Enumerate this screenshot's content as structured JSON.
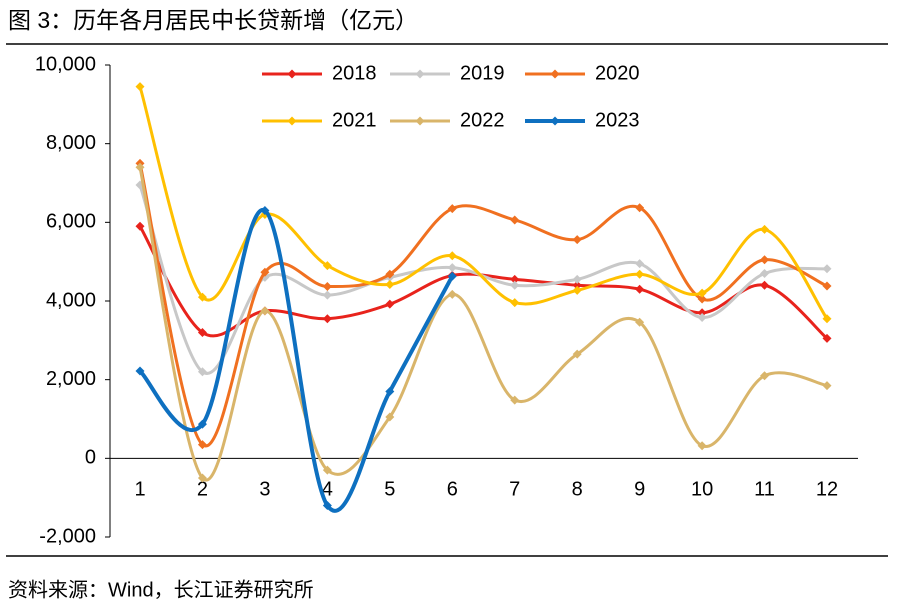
{
  "chart_data": {
    "type": "line",
    "title": "图 3：历年各月居民中长贷新增（亿元）",
    "source": "资料来源：Wind，长江证券研究所",
    "categories": [
      "1",
      "2",
      "3",
      "4",
      "5",
      "6",
      "7",
      "8",
      "9",
      "10",
      "11",
      "12"
    ],
    "series": [
      {
        "name": "2018",
        "color": "#e8231c",
        "values": [
          5900,
          3200,
          3750,
          3550,
          3920,
          4650,
          4550,
          4400,
          4300,
          3700,
          4400,
          3050
        ]
      },
      {
        "name": "2019",
        "color": "#c8c8c8",
        "values": [
          6950,
          2200,
          4600,
          4150,
          4600,
          4850,
          4400,
          4550,
          4950,
          3580,
          4700,
          4820
        ]
      },
      {
        "name": "2020",
        "color": "#f07020",
        "values": [
          7500,
          350,
          4730,
          4370,
          4680,
          6350,
          6060,
          5560,
          6370,
          4050,
          5050,
          4380
        ]
      },
      {
        "name": "2021",
        "color": "#ffc000",
        "values": [
          9450,
          4100,
          6200,
          4900,
          4420,
          5150,
          3960,
          4270,
          4680,
          4200,
          5820,
          3550
        ]
      },
      {
        "name": "2022",
        "color": "#d9b56a",
        "values": [
          7400,
          -500,
          3750,
          -300,
          1050,
          4170,
          1480,
          2650,
          3460,
          320,
          2100,
          1850
        ]
      },
      {
        "name": "2023",
        "color": "#0e70c0",
        "values": [
          2220,
          870,
          6300,
          -1200,
          1700,
          4630,
          null,
          null,
          null,
          null,
          null,
          null
        ]
      }
    ],
    "ylim": [
      -2000,
      10000
    ],
    "yticks": [
      {
        "value": -2000,
        "label": "-2,000"
      },
      0,
      {
        "value": 2000,
        "label": "2,000"
      },
      {
        "value": 4000,
        "label": "4,000"
      },
      {
        "value": 6000,
        "label": "6,000"
      },
      {
        "value": 8000,
        "label": "8,000"
      },
      {
        "value": 10000,
        "label": "10,000"
      }
    ],
    "grid": false
  }
}
